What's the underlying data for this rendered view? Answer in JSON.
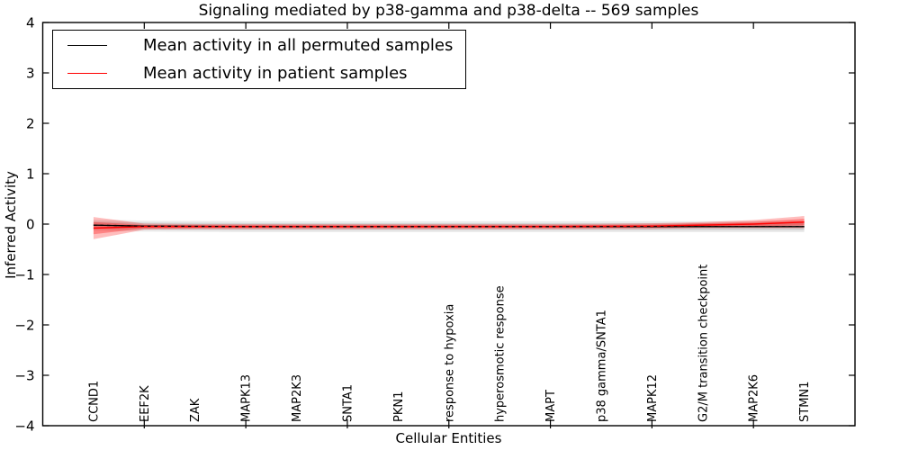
{
  "chart_data": {
    "type": "line",
    "title": "Signaling mediated by p38-gamma and p38-delta -- 569 samples",
    "xlabel": "Cellular Entities",
    "ylabel": "Inferred Activity",
    "ylim": [
      -4,
      4
    ],
    "xlim": [
      -1,
      15
    ],
    "grid": false,
    "legend_position": "upper left",
    "yticks": [
      4,
      3,
      2,
      1,
      0,
      -1,
      -2,
      -3,
      -4
    ],
    "ytick_labels": [
      "4",
      "3",
      "2",
      "1",
      "0",
      "−1",
      "−2",
      "−3",
      "−4"
    ],
    "categories": [
      "CCND1",
      "EEF2K",
      "ZAK",
      "MAPK13",
      "MAP2K3",
      "SNTA1",
      "PKN1",
      "response to hypoxia",
      "hyperosmotic response",
      "MAPT",
      "p38 gamma/SNTA1",
      "MAPK12",
      "G2/M transition checkpoint",
      "MAP2K6",
      "STMN1"
    ],
    "xtick_indices": [
      1,
      3,
      5,
      7,
      9,
      11,
      13
    ],
    "series": [
      {
        "name": "Mean activity in all permuted samples",
        "color": "#000000",
        "values": [
          -0.02,
          -0.04,
          -0.045,
          -0.05,
          -0.05,
          -0.05,
          -0.05,
          -0.05,
          -0.05,
          -0.05,
          -0.05,
          -0.05,
          -0.05,
          -0.05,
          -0.05
        ],
        "band_color": "#000000",
        "band_halfwidth_inner": 0.07,
        "band_halfwidth_outer": 0.11
      },
      {
        "name": "Mean activity in patient samples",
        "color": "#ff0000",
        "values": [
          -0.08,
          -0.05,
          -0.05,
          -0.05,
          -0.05,
          -0.05,
          -0.05,
          -0.05,
          -0.05,
          -0.05,
          -0.045,
          -0.04,
          -0.02,
          0.0,
          0.04
        ],
        "band_color": "#ff0000",
        "band_halfwidth_inner": [
          0.12,
          0.035,
          0.03,
          0.03,
          0.03,
          0.03,
          0.03,
          0.03,
          0.03,
          0.03,
          0.03,
          0.032,
          0.035,
          0.045,
          0.065
        ],
        "band_halfwidth_outer": [
          0.22,
          0.06,
          0.05,
          0.05,
          0.05,
          0.05,
          0.05,
          0.05,
          0.05,
          0.05,
          0.05,
          0.055,
          0.06,
          0.08,
          0.12
        ]
      }
    ]
  }
}
